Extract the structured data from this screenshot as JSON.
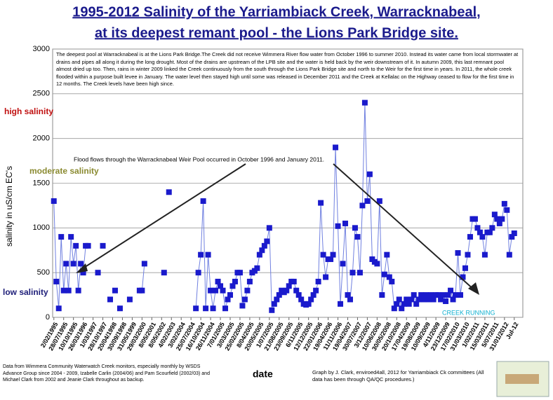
{
  "chart_data": {
    "type": "line",
    "title": [
      "1995-2012 Salinity of the Yarriambiack Creek, Warracknabeal,",
      "at its deepest remant pool - the Lions Park Bridge site."
    ],
    "y_label": "salinity in uS/cm EC's",
    "x_label": "date",
    "annotations": {
      "box": "The deepest pool at Warracknabeal is at the Lions Park Bridge.The Creek did not receive Wimmera River flow water from October 1996 to summer 2010. Instead its water came from local stormwater at drains and pipes all along it during the long drought. Most of the drains are upstream of the LPB site and the water is held back by the weir downstream of it. In autumn 2009, this last remnant pool almost dried up too. Then, rains in winter 2009 linked the Creek continuously from the south through the Lions Park Bridge site and north to the Weir for the first time in years. In 2011, the whole creek flooded within a purpose built levee in January. The water level then stayed high until some was released in December 2011 and the Creek at Kellalac on the Highway ceased to flow for the first time in 12 months. The Creek levels have been high since.",
      "flood": "Flood flows through the Warracknabeal Weir Pool occurred in October 1996 and January 2011.",
      "high": "high salinity",
      "moderate": "moderate salinity",
      "low": "low salinity",
      "running": "CREEK RUNNING",
      "source": "Data from Wimmera Community Waterwatch Creek monitors, especially monthly by WSDS Advance Group since 2004 - 2009, Izabelle Carlin (2004/06) and Pam Scourfield (2002/03) and Michael Clark from 2002 and Jeanie Clark throughout as backup.",
      "credit": "Graph by J. Clark, enviroed4all, 2012 for Yarriambiack Ck committees (All data has been through QA/QC procedures.)"
    },
    "ylim": [
      0,
      3000
    ],
    "yticks": [
      0,
      500,
      1000,
      1500,
      2000,
      2500,
      3000
    ],
    "grid": true,
    "categories": [
      "2/02/1995",
      null,
      null,
      null,
      "28/07/1995",
      null,
      null,
      null,
      "10/10/1995",
      null,
      null,
      null,
      "26/03/1996",
      null,
      null,
      null,
      "1/03/1997",
      null,
      null,
      null,
      "28/10/1997",
      null,
      null,
      null,
      "20/04/1998",
      null,
      null,
      null,
      "30/09/1998",
      null,
      null,
      null,
      "31/05/1999",
      null,
      null,
      null,
      "29/03/2000",
      null,
      null,
      null,
      "8/05/2001",
      null,
      null,
      null,
      "8/05/2002",
      null,
      null,
      null,
      "4/02/2003",
      null,
      null,
      null,
      "3/02/2004",
      null,
      null,
      null,
      "25/07/2004",
      null,
      null,
      null,
      "16/10/2004",
      null,
      null,
      null,
      "26/11/2004",
      null,
      null,
      null,
      "7/01/2005",
      null,
      null,
      null,
      "3/03/2005",
      null,
      null,
      null,
      "25/02/2005",
      null,
      null,
      null,
      "8/04/2005",
      null,
      null,
      null,
      "20/05/2005",
      null,
      null,
      null,
      "1/07/2005",
      null,
      null,
      null,
      "21/08/2005",
      null,
      null,
      null,
      "23/09/2005",
      null,
      null,
      null,
      "6/11/2005",
      null,
      null,
      null,
      "12/12/2005",
      null,
      null,
      null,
      "22/01/2006",
      null,
      null,
      null,
      "19/04/2006",
      null,
      null,
      null,
      "11/11/2006",
      null,
      null,
      null,
      "19/04/2007",
      null,
      null,
      null,
      "30/07/2007",
      null,
      null,
      null,
      "3/12/2007",
      null,
      null,
      null,
      "10/06/2008",
      null,
      null,
      null,
      "30/05/2008",
      null,
      null,
      null,
      "20/10/2008",
      null,
      null,
      null,
      "17/04/2009",
      null,
      null,
      null,
      "19/08/2009",
      null,
      null,
      null,
      "10/09/2009",
      null,
      null,
      null,
      "4/11/2009",
      null,
      null,
      null,
      "23/12/2009",
      null,
      null,
      null,
      "17/02/2010",
      null,
      null,
      null,
      "31/03/2010",
      null,
      null,
      null,
      "1/02/2011",
      null,
      null,
      null,
      "15/03/2011",
      null,
      null,
      null,
      "5/07/2011",
      null,
      null,
      null,
      "31/01/2012",
      null,
      null,
      null,
      "Jul-12",
      null,
      null,
      null
    ],
    "series": [
      {
        "name": "salinity",
        "color": "#1a1acc",
        "line_color": "#7080e0",
        "values": [
          1300,
          400,
          100,
          900,
          300,
          600,
          300,
          900,
          600,
          800,
          300,
          600,
          500,
          800,
          800,
          null,
          null,
          null,
          500,
          null,
          800,
          null,
          null,
          200,
          null,
          300,
          null,
          100,
          null,
          null,
          null,
          200,
          null,
          null,
          null,
          300,
          300,
          600,
          null,
          null,
          null,
          null,
          null,
          null,
          null,
          500,
          null,
          1400,
          null,
          null,
          null,
          null,
          null,
          null,
          null,
          null,
          null,
          null,
          100,
          500,
          700,
          1300,
          100,
          700,
          300,
          100,
          300,
          400,
          350,
          300,
          100,
          200,
          250,
          350,
          400,
          500,
          500,
          130,
          200,
          300,
          400,
          500,
          520,
          550,
          700,
          750,
          800,
          850,
          1000,
          80,
          150,
          200,
          250,
          300,
          280,
          300,
          350,
          400,
          400,
          300,
          250,
          200,
          150,
          140,
          150,
          200,
          250,
          300,
          400,
          1280,
          700,
          450,
          650,
          650,
          700,
          1900,
          1020,
          150,
          600,
          1050,
          250,
          200,
          500,
          1000,
          900,
          500,
          1250,
          2400,
          1300,
          1600,
          650,
          620,
          600,
          1300,
          250,
          480,
          700,
          450,
          400,
          100,
          150,
          200,
          100,
          150,
          200,
          150,
          200,
          250,
          150,
          200,
          250,
          200,
          250,
          200,
          250,
          200,
          250,
          250,
          200,
          250,
          180,
          250,
          300,
          200,
          250,
          720,
          250,
          450,
          550,
          700,
          900,
          1100,
          1100,
          1000,
          950,
          900,
          700,
          950,
          950,
          1000,
          1150,
          1100,
          1050,
          1100,
          1270,
          1200,
          700,
          900,
          940,
          null,
          null,
          null
        ]
      }
    ]
  }
}
